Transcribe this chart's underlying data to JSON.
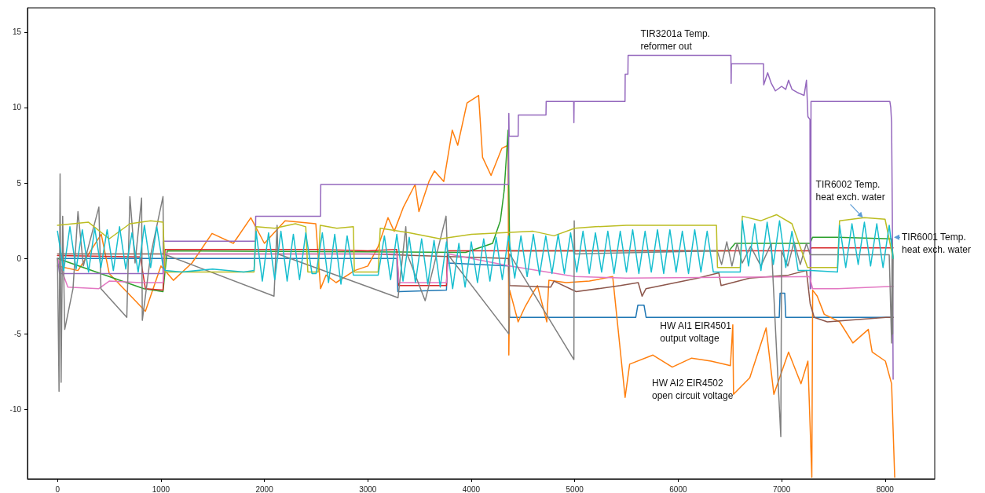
{
  "chart_data": {
    "type": "line",
    "xlim": [
      -290,
      8480
    ],
    "ylim": [
      -14.6,
      16.6
    ],
    "xticks": [
      0,
      1000,
      2000,
      3000,
      4000,
      5000,
      6000,
      7000,
      8000
    ],
    "yticks": [
      -10,
      -5,
      0,
      5,
      10,
      15
    ],
    "grid": false,
    "annotations": [
      {
        "text": "TIR3201a Temp.\nreformer out",
        "x": 5636,
        "y": 13.45
      },
      {
        "text": "TIR6002 Temp.\nheat exch. water",
        "x": 7786,
        "y": 2.7
      },
      {
        "text": "TIR6001 Temp.\nheat exch. water",
        "x": 8085,
        "y": 1.4
      },
      {
        "text": "HW AI1 EIR4501\noutput voltage",
        "x": 5809,
        "y": -3.9
      },
      "HW AI2 EIR4502\nopen circuit voltage"
    ],
    "series": [
      {
        "color": "#1f77b4",
        "x": [
          0,
          3280,
          3290,
          3760,
          3770,
          4360,
          4370,
          5590,
          5610,
          5670,
          5690,
          6977,
          6985,
          7030,
          7040,
          8078
        ],
        "values": [
          0,
          0,
          -2.2,
          -2.1,
          -0.3,
          -0.5,
          -3.9,
          -3.9,
          -3.1,
          -3.1,
          -3.9,
          -3.9,
          -2.3,
          -2.3,
          -3.9,
          -3.9
        ]
      },
      {
        "color": "#ff7f0e",
        "x": [
          0,
          198,
          423,
          500,
          850,
          1000,
          1120,
          1300,
          1494,
          1700,
          1869,
          2000,
          2200,
          2497,
          2543,
          2596,
          2693,
          2872,
          3000,
          3100,
          3195,
          3255,
          3344,
          3457,
          3494,
          3591,
          3644,
          3734,
          3816,
          3869,
          3959,
          4071,
          4109,
          4191,
          4296,
          4356,
          4363,
          4371,
          4453,
          4520,
          4595,
          4640,
          4730,
          4750,
          4917,
          5142,
          5367,
          5487,
          5531,
          5756,
          5943,
          6130,
          6318,
          6505,
          6528,
          6535,
          6692,
          6850,
          6925,
          7067,
          7187,
          7254,
          7292,
          7300,
          7344,
          7412,
          7561,
          7689,
          7838,
          7875,
          8003,
          8063,
          8093
        ],
        "values": [
          -0.5,
          -0.8,
          1.6,
          -1.0,
          -3.5,
          -0.5,
          -1.45,
          -0.3,
          1.66,
          1.0,
          2.7,
          1.0,
          2.5,
          2.3,
          -2.0,
          -1.1,
          -1.6,
          -0.8,
          -0.5,
          0.8,
          2.7,
          1.8,
          3.4,
          4.9,
          3.1,
          5.1,
          5.8,
          5.1,
          8.5,
          7.5,
          10.3,
          10.8,
          6.7,
          5.5,
          7.3,
          7.5,
          -6.4,
          -2.1,
          -4.2,
          -3.2,
          -2.3,
          -1.8,
          -4.2,
          -1.45,
          -1.6,
          -1.5,
          -1.2,
          -9.2,
          -7.0,
          -6.4,
          -7.2,
          -6.6,
          -6.8,
          -7.1,
          -4.4,
          -9.0,
          -7.9,
          -4.6,
          -9.0,
          -6.2,
          -8.3,
          -6.8,
          -14.5,
          -2.1,
          -2.5,
          -3.7,
          -4.2,
          -5.6,
          -4.7,
          -6.2,
          -6.8,
          -8.3,
          -14.5
        ]
      },
      {
        "color": "#2ca02c",
        "x": [
          0,
          835,
          1020,
          1060,
          3944,
          4206,
          4281,
          4318,
          4356,
          4371,
          6490,
          6550,
          6677,
          7276,
          7299,
          7539,
          8063,
          8078
        ],
        "values": [
          0,
          -2.0,
          -2.2,
          0.5,
          0.4,
          1.0,
          2.5,
          4.5,
          8.5,
          0.5,
          0.5,
          1.0,
          1.0,
          1.0,
          1.4,
          1.4,
          1.3,
          0.0
        ]
      },
      {
        "color": "#d62728",
        "x": [
          0,
          800,
          850,
          1020,
          1040,
          2500,
          3000,
          3280,
          3300,
          3760,
          3770,
          7270,
          7290,
          7540,
          8078
        ],
        "values": [
          0.2,
          0.1,
          -2.0,
          -2.1,
          0.6,
          0.6,
          0.5,
          0.6,
          -1.8,
          -1.8,
          0.5,
          0.5,
          0.7,
          0.7,
          0.7
        ]
      },
      {
        "color": "#9467bd",
        "x": [
          0,
          20,
          1020,
          1022,
          1914,
          1916,
          2543,
          2545,
          4360,
          4363,
          4366,
          4453,
          4455,
          4722,
          4724,
          4990,
          4992,
          4994,
          5486,
          5488,
          5514,
          5516,
          6510,
          6512,
          6514,
          6825,
          6827,
          6865,
          6900,
          6940,
          7000,
          7040,
          7067,
          7100,
          7150,
          7217,
          7240,
          7254,
          7274,
          7276,
          7282,
          7284,
          8046,
          8055,
          8063,
          8070,
          8078
        ],
        "values": [
          0,
          -1.0,
          -1.0,
          1.14,
          1.14,
          2.8,
          2.8,
          4.9,
          4.9,
          9.6,
          8.1,
          8.1,
          9.5,
          9.5,
          10.4,
          10.4,
          9.0,
          10.4,
          10.4,
          12.2,
          12.2,
          13.45,
          13.45,
          11.6,
          12.9,
          12.9,
          11.5,
          12.3,
          11.6,
          11.1,
          11.4,
          11.2,
          11.8,
          11.2,
          11.0,
          10.8,
          11.8,
          9.4,
          9.2,
          -2.0,
          -2.0,
          10.4,
          10.4,
          10.0,
          9.0,
          3.0,
          -8.0
        ]
      },
      {
        "color": "#8c564b",
        "x": [
          0,
          1040,
          3000,
          4360,
          4370,
          4767,
          4800,
          5014,
          5441,
          5614,
          5651,
          5689,
          6191,
          6393,
          6415,
          6692,
          7067,
          7240,
          7276,
          7315,
          7442,
          8011,
          8078
        ],
        "values": [
          0.3,
          0.3,
          0.3,
          0.0,
          -1.8,
          -1.9,
          -1.5,
          -2.2,
          -1.8,
          -1.6,
          -2.5,
          -2.0,
          -1.3,
          -0.95,
          -1.8,
          -1.3,
          -1.1,
          -0.8,
          -3.0,
          -3.9,
          -4.2,
          -3.9,
          -3.9
        ]
      },
      {
        "color": "#e377c2",
        "x": [
          0,
          100,
          400,
          500,
          800,
          1020,
          1040,
          3280,
          3300,
          3760,
          3780,
          4370,
          5000,
          5500,
          7270,
          7300,
          7540,
          8078
        ],
        "values": [
          0,
          -1.9,
          -2.0,
          -1.5,
          -1.6,
          -1.6,
          0.3,
          0.3,
          -1.6,
          -1.6,
          0.3,
          -0.5,
          -1.2,
          -1.3,
          -1.2,
          -2.0,
          -2.0,
          -1.85
        ]
      },
      {
        "color": "#7f7f7f",
        "x": [
          0,
          15,
          25,
          35,
          50,
          70,
          150,
          198,
          250,
          400,
          420,
          670,
          700,
          750,
          813,
          820,
          900,
          1020,
          1025,
          2093,
          2123,
          2130,
          3292,
          3367,
          3380,
          3554,
          3756,
          3770,
          4363,
          4370,
          4992,
          4995,
          5000,
          6377,
          6420,
          6470,
          6520,
          6570,
          6620,
          6700,
          6800,
          6900,
          6992,
          7000,
          7060,
          7120,
          7180,
          7240,
          7276,
          8040,
          8063,
          8068,
          8073,
          8078
        ],
        "values": [
          0,
          -8.8,
          5.6,
          -8.2,
          2.8,
          -4.7,
          -2.0,
          3.1,
          -0.5,
          3.4,
          -2.0,
          -3.9,
          4.1,
          -0.3,
          4.0,
          -4.1,
          0.2,
          4.1,
          0.3,
          -2.5,
          2.2,
          0.3,
          -2.6,
          2.1,
          0.3,
          -2.8,
          2.8,
          0.3,
          -5.0,
          0.3,
          -6.7,
          2.5,
          0.3,
          0.5,
          -0.4,
          1.1,
          -0.5,
          1.0,
          -0.3,
          0.8,
          -0.5,
          1.0,
          -11.8,
          0.5,
          -0.5,
          1.1,
          -0.4,
          1.0,
          0.25,
          0.25,
          -5.6,
          1.0,
          -5.0,
          0.0
        ]
      },
      {
        "color": "#bcbd22",
        "x": [
          0,
          300,
          500,
          700,
          900,
          1020,
          1040,
          1900,
          1920,
          2100,
          2300,
          2400,
          2420,
          2520,
          2540,
          2700,
          2860,
          2870,
          3100,
          3120,
          3400,
          3700,
          4000,
          4300,
          4600,
          4800,
          5000,
          5200,
          5500,
          5800,
          6100,
          6370,
          6380,
          6600,
          6620,
          6800,
          6950,
          7100,
          7250,
          7540,
          7560,
          7800,
          8000,
          8078
        ],
        "values": [
          2.2,
          2.4,
          1.3,
          2.3,
          2.5,
          2.4,
          -0.9,
          -0.9,
          2.1,
          2.0,
          2.3,
          2.1,
          -0.9,
          -0.9,
          2.2,
          2.0,
          2.1,
          -0.9,
          -0.9,
          2.0,
          1.7,
          1.3,
          1.6,
          1.7,
          1.8,
          1.5,
          2.0,
          2.1,
          2.2,
          2.2,
          2.2,
          2.2,
          -0.6,
          -0.6,
          2.8,
          2.5,
          2.9,
          2.3,
          -0.6,
          -0.6,
          2.5,
          2.7,
          2.6,
          0.0
        ]
      },
      {
        "color": "#17becf",
        "x": [
          0,
          60,
          120,
          180,
          240,
          300,
          360,
          420,
          480,
          540,
          600,
          660,
          720,
          780,
          840,
          900,
          960,
          1020,
          1040,
          1200,
          1500,
          1800,
          1900,
          1920,
          1980,
          2040,
          2100,
          2160,
          2220,
          2280,
          2340,
          2400,
          2460,
          2500,
          2560,
          2620,
          2680,
          2740,
          2800,
          2860,
          3000,
          3100,
          3160,
          3220,
          3280,
          3340,
          3400,
          3460,
          3520,
          3580,
          3640,
          3700,
          3760,
          3820,
          3880,
          3940,
          4000,
          4060,
          4120,
          4180,
          4240,
          4300,
          4360,
          4420,
          4480,
          4540,
          4600,
          4660,
          4720,
          4780,
          4840,
          4900,
          4960,
          5020,
          5080,
          5140,
          5200,
          5260,
          5320,
          5380,
          5440,
          5500,
          5560,
          5620,
          5680,
          5740,
          5800,
          5860,
          5920,
          5980,
          6040,
          6100,
          6160,
          6220,
          6280,
          6340,
          6370,
          6600,
          6620,
          6680,
          6740,
          6800,
          6860,
          6920,
          6980,
          7040,
          7100,
          7160,
          7280,
          7540,
          7560,
          7620,
          7680,
          7740,
          7800,
          7860,
          7920,
          7980,
          8040,
          8078
        ],
        "values": [
          1.8,
          -0.8,
          2.1,
          -0.7,
          1.9,
          -0.9,
          2.0,
          -0.6,
          1.9,
          -0.8,
          2.1,
          -0.7,
          1.7,
          -0.9,
          2.2,
          -0.6,
          2.1,
          -0.5,
          -0.8,
          -0.9,
          -0.7,
          -0.9,
          -0.8,
          1.8,
          -1.5,
          1.7,
          -1.4,
          1.8,
          -1.5,
          1.6,
          -1.4,
          1.7,
          -1.0,
          -1.0,
          1.7,
          -1.6,
          1.6,
          -1.7,
          1.5,
          -1.1,
          -1.1,
          -1.1,
          1.5,
          -1.4,
          1.6,
          -1.5,
          1.4,
          -1.6,
          1.3,
          -1.7,
          1.2,
          -1.9,
          1.1,
          -2.0,
          1.0,
          -1.9,
          1.1,
          -1.6,
          1.3,
          -1.5,
          1.4,
          -1.4,
          1.5,
          -1.3,
          1.5,
          -1.2,
          1.6,
          -1.1,
          1.5,
          -1.0,
          1.6,
          -1.0,
          1.7,
          -0.9,
          1.8,
          -1.0,
          1.7,
          -0.9,
          1.8,
          -1.0,
          1.8,
          -0.9,
          1.9,
          -1.0,
          1.8,
          -0.9,
          1.9,
          -1.0,
          1.9,
          -0.9,
          1.8,
          -1.0,
          1.9,
          -0.9,
          1.8,
          -0.9,
          -0.9,
          -0.9,
          2.5,
          -0.5,
          2.3,
          -0.8,
          2.4,
          -0.4,
          2.5,
          -0.6,
          1.8,
          -0.8,
          -0.8,
          -0.9,
          2.2,
          -0.6,
          2.3,
          -0.4,
          2.4,
          -0.5,
          2.3,
          -0.6,
          2.2,
          0.0
        ]
      }
    ]
  }
}
